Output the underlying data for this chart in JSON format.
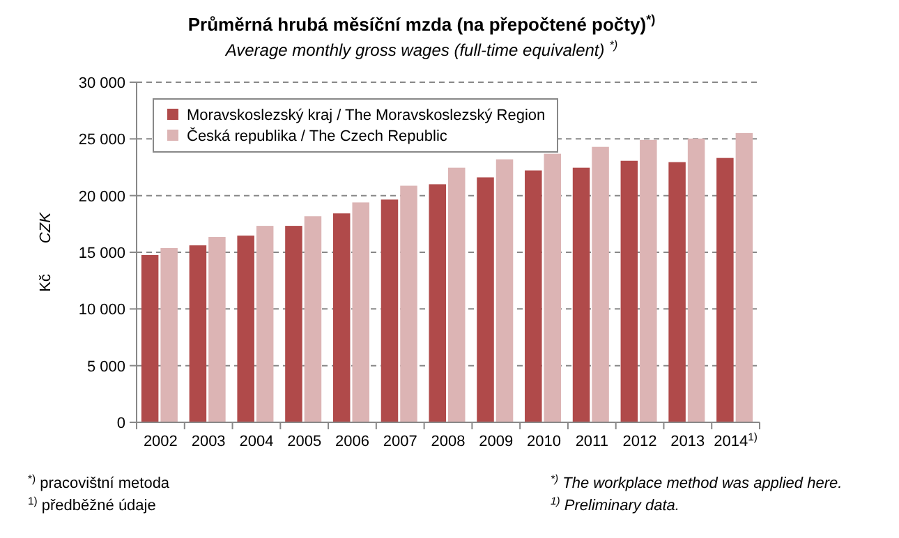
{
  "chart_data": {
    "type": "bar",
    "title": "Průměrná hrubá měsíční mzda (na přepočtené počty)$^{*)}$",
    "subtitle": "Average monthly gross wages (full-time equivalent) $^{*)}$",
    "ylabel": "Kč     CZK",
    "categories": [
      "2002",
      "2003",
      "2004",
      "2005",
      "2006",
      "2007",
      "2008",
      "2009",
      "2010",
      "2011",
      "2012",
      "2013",
      "2014$^{1)}$"
    ],
    "series": [
      {
        "name": "Moravskoslezský kraj / The Moravskoslezský Region",
        "color": "#b04a4a",
        "values": [
          14760,
          15610,
          16470,
          17330,
          18430,
          19650,
          21000,
          21610,
          22220,
          22460,
          23070,
          22950,
          23320
        ]
      },
      {
        "name": "Česká republika / The Czech Republic",
        "color": "#dcb4b4",
        "values": [
          15370,
          16350,
          17330,
          18180,
          19400,
          20870,
          22460,
          23200,
          23690,
          24300,
          24910,
          25030,
          25520
        ]
      }
    ],
    "ylim": [
      0,
      30000
    ],
    "yticks": [
      0,
      {
        "value": 5000,
        "label": "5 000"
      },
      {
        "value": 10000,
        "label": "10 000"
      },
      {
        "value": 15000,
        "label": "15 000"
      },
      {
        "value": 20000,
        "label": "20 000"
      },
      {
        "value": 25000,
        "label": "25 000"
      },
      {
        "value": 30000,
        "label": "30 000"
      }
    ],
    "grid": "y",
    "legend": "top left",
    "annotations": [
      "$^{*)}$ pracovištní metoda",
      "$^{1)}$ předběžné údaje",
      "$^{*)}$ The workplace method was applied here.",
      "$^{1)}$ Preliminary data."
    ]
  }
}
